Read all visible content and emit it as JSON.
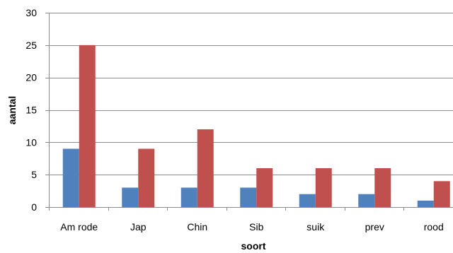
{
  "chart_data": {
    "type": "bar",
    "categories": [
      "Am rode",
      "Jap",
      "Chin",
      "Sib",
      "suik",
      "prev",
      "rood"
    ],
    "series": [
      {
        "values": [
          9,
          3,
          3,
          3,
          2,
          2,
          1
        ],
        "color": "#4F81BD"
      },
      {
        "values": [
          25,
          9,
          12,
          6,
          6,
          6,
          4
        ],
        "color": "#C0504D"
      }
    ],
    "xlabel": "soort",
    "ylabel": "aantal",
    "ylim": [
      0,
      30
    ],
    "yticks": [
      0,
      5,
      10,
      15,
      20,
      25,
      30
    ],
    "grid": true,
    "legend": "none"
  }
}
